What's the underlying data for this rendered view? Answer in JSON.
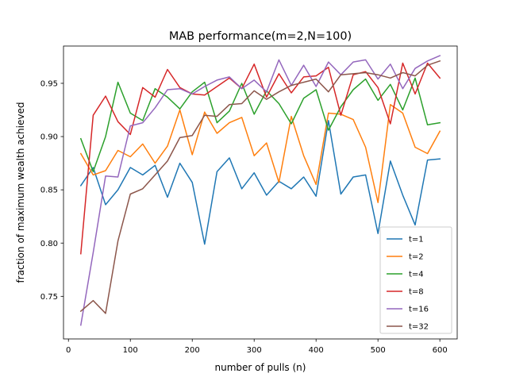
{
  "chart_data": {
    "type": "line",
    "title": "MAB performance(m=2,N=100)",
    "xlabel": "number of pulls (n)",
    "ylabel": "fraction of maximum wealth achieved",
    "xlim": [
      -8,
      628
    ],
    "ylim": [
      0.71,
      0.985
    ],
    "xticks": [
      0,
      100,
      200,
      300,
      400,
      500,
      600
    ],
    "xtick_labels": [
      "0",
      "100",
      "200",
      "300",
      "400",
      "500",
      "600"
    ],
    "yticks": [
      0.75,
      0.8,
      0.85,
      0.9,
      0.95
    ],
    "ytick_labels": [
      "0.75",
      "0.80",
      "0.85",
      "0.90",
      "0.95"
    ],
    "grid": false,
    "legend_position": "bottom-right",
    "x": [
      20,
      40,
      60,
      80,
      100,
      120,
      140,
      160,
      180,
      200,
      220,
      240,
      260,
      280,
      300,
      320,
      340,
      360,
      380,
      400,
      420,
      440,
      460,
      480,
      500,
      520,
      540,
      560,
      580,
      600
    ],
    "series": [
      {
        "name": "t=1",
        "color": "#1f77b4",
        "values": [
          0.854,
          0.871,
          0.836,
          0.85,
          0.871,
          0.864,
          0.873,
          0.843,
          0.875,
          0.857,
          0.799,
          0.867,
          0.88,
          0.851,
          0.866,
          0.845,
          0.858,
          0.851,
          0.862,
          0.844,
          0.915,
          0.846,
          0.862,
          0.864,
          0.809,
          0.877,
          0.845,
          0.817,
          0.878,
          0.879
        ]
      },
      {
        "name": "t=2",
        "color": "#ff7f0e",
        "values": [
          0.884,
          0.864,
          0.868,
          0.887,
          0.881,
          0.893,
          0.875,
          0.891,
          0.925,
          0.883,
          0.923,
          0.903,
          0.913,
          0.918,
          0.882,
          0.894,
          0.857,
          0.919,
          0.882,
          0.855,
          0.922,
          0.921,
          0.916,
          0.89,
          0.838,
          0.93,
          0.922,
          0.89,
          0.884,
          0.905
        ]
      },
      {
        "name": "t=4",
        "color": "#2ca02c",
        "values": [
          0.898,
          0.867,
          0.9,
          0.951,
          0.922,
          0.915,
          0.945,
          0.937,
          0.926,
          0.942,
          0.951,
          0.913,
          0.924,
          0.95,
          0.921,
          0.943,
          0.931,
          0.912,
          0.936,
          0.944,
          0.906,
          0.928,
          0.944,
          0.954,
          0.934,
          0.949,
          0.925,
          0.955,
          0.911,
          0.913
        ]
      },
      {
        "name": "t=8",
        "color": "#d62728",
        "values": [
          0.79,
          0.92,
          0.938,
          0.914,
          0.902,
          0.946,
          0.937,
          0.963,
          0.946,
          0.94,
          0.939,
          0.947,
          0.955,
          0.945,
          0.968,
          0.937,
          0.959,
          0.941,
          0.956,
          0.957,
          0.965,
          0.92,
          0.958,
          0.961,
          0.946,
          0.912,
          0.969,
          0.94,
          0.969,
          0.955
        ]
      },
      {
        "name": "t=16",
        "color": "#9467bd",
        "values": [
          0.723,
          0.791,
          0.863,
          0.862,
          0.91,
          0.913,
          0.927,
          0.944,
          0.945,
          0.94,
          0.947,
          0.953,
          0.956,
          0.945,
          0.953,
          0.942,
          0.972,
          0.948,
          0.967,
          0.947,
          0.97,
          0.958,
          0.97,
          0.972,
          0.954,
          0.968,
          0.945,
          0.964,
          0.971,
          0.976
        ]
      },
      {
        "name": "t=32",
        "color": "#8c564b",
        "values": [
          0.736,
          0.746,
          0.734,
          0.802,
          0.846,
          0.851,
          0.864,
          0.877,
          0.899,
          0.901,
          0.92,
          0.919,
          0.93,
          0.931,
          0.943,
          0.935,
          0.942,
          0.948,
          0.951,
          0.954,
          0.942,
          0.958,
          0.959,
          0.96,
          0.958,
          0.955,
          0.96,
          0.957,
          0.967,
          0.971
        ]
      }
    ]
  }
}
